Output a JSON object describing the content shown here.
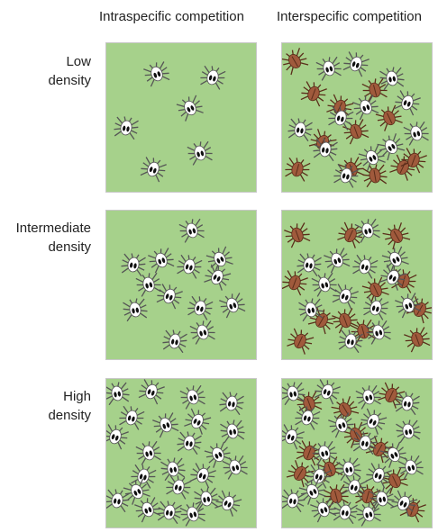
{
  "columns": [
    {
      "id": "intra",
      "label": "Intraspecific competition"
    },
    {
      "id": "inter",
      "label": "Interspecific competition"
    }
  ],
  "rows": [
    {
      "id": "low",
      "label_lines": [
        "Low",
        "density"
      ]
    },
    {
      "id": "intermediate",
      "label_lines": [
        "Intermediate",
        "density"
      ]
    },
    {
      "id": "high",
      "label_lines": [
        "High",
        "density"
      ]
    }
  ],
  "colors": {
    "panel_background": "#a6d18b",
    "white_mite": "#ffffff",
    "brown_mite": "#a05a3c",
    "outline": "#555555"
  },
  "mite_counts": {
    "intra": {
      "low": 6,
      "intermediate": 13,
      "high": 24
    },
    "inter": {
      "white": {
        "low": 6,
        "intermediate": 13,
        "high": 24
      },
      "brown": {
        "low": 12,
        "intermediate": 12,
        "high": 12
      }
    }
  }
}
